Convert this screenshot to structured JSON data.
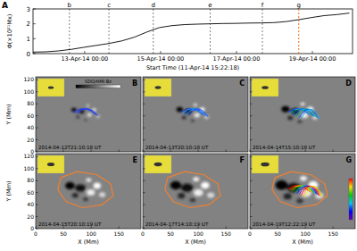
{
  "chart_data": {
    "type": "line",
    "title": "A",
    "color": "#000000",
    "y_label": "Φ(×10²¹Mx)",
    "x_label": "Start Time (11-Apr-14 15:22:18)",
    "x": [
      0,
      8,
      16,
      24,
      32,
      40,
      48,
      56,
      64,
      72,
      80,
      88,
      96,
      104,
      112,
      120,
      128,
      136,
      144,
      152,
      160,
      168,
      176,
      184,
      192,
      200
    ],
    "values": [
      0.1,
      0.12,
      0.18,
      0.28,
      0.42,
      0.55,
      0.68,
      0.85,
      1.1,
      1.45,
      1.75,
      1.88,
      1.95,
      1.98,
      2.0,
      2.02,
      2.03,
      2.05,
      2.06,
      2.08,
      2.15,
      2.28,
      2.42,
      2.55,
      2.62,
      2.72
    ],
    "xlim": [
      0,
      202
    ],
    "ylim": [
      0,
      3
    ],
    "xticks": [
      {
        "value": 32.63,
        "label": "13-Apr-14 00:00"
      },
      {
        "value": 80.63,
        "label": "15-Apr-14 00:00"
      },
      {
        "value": 128.63,
        "label": "17-Apr-14 00:00"
      },
      {
        "value": 176.63,
        "label": "19-Apr-14 00:00"
      }
    ],
    "yticks": [
      0,
      1,
      2,
      3
    ],
    "events": [
      {
        "label": "b",
        "x": 23,
        "color": "#000000"
      },
      {
        "label": "c",
        "x": 48,
        "color": "#000000"
      },
      {
        "label": "d",
        "x": 76,
        "color": "#000000"
      },
      {
        "label": "e",
        "x": 112,
        "color": "#000000"
      },
      {
        "label": "f",
        "x": 145,
        "color": "#000000"
      },
      {
        "label": "g",
        "x": 168,
        "color": "#ff6600"
      }
    ]
  },
  "magnetograms": {
    "colorbar_title": "SDO/HMI Bz",
    "x_label": "X (Mm)",
    "y_label": "Y (Mm)",
    "xlim": [
      0,
      190
    ],
    "ylim": [
      0,
      125
    ],
    "xticks": [
      0,
      50,
      100,
      150
    ],
    "yticks": [
      0,
      20,
      40,
      60,
      80,
      100,
      120
    ],
    "panels": [
      {
        "label": "B",
        "time": "2014-04-12T21:10:18 UT"
      },
      {
        "label": "C",
        "time": "2014-04-13T20:10:18 UT"
      },
      {
        "label": "D",
        "time": "2014-04-14T15:10:18 UT"
      },
      {
        "label": "E",
        "time": "2014-04-15T20:10:19 UT"
      },
      {
        "label": "F",
        "time": "2014-04-17T14:10:19 UT"
      },
      {
        "label": "G",
        "time": "2014-04-19T12:22:19 UT"
      }
    ]
  }
}
